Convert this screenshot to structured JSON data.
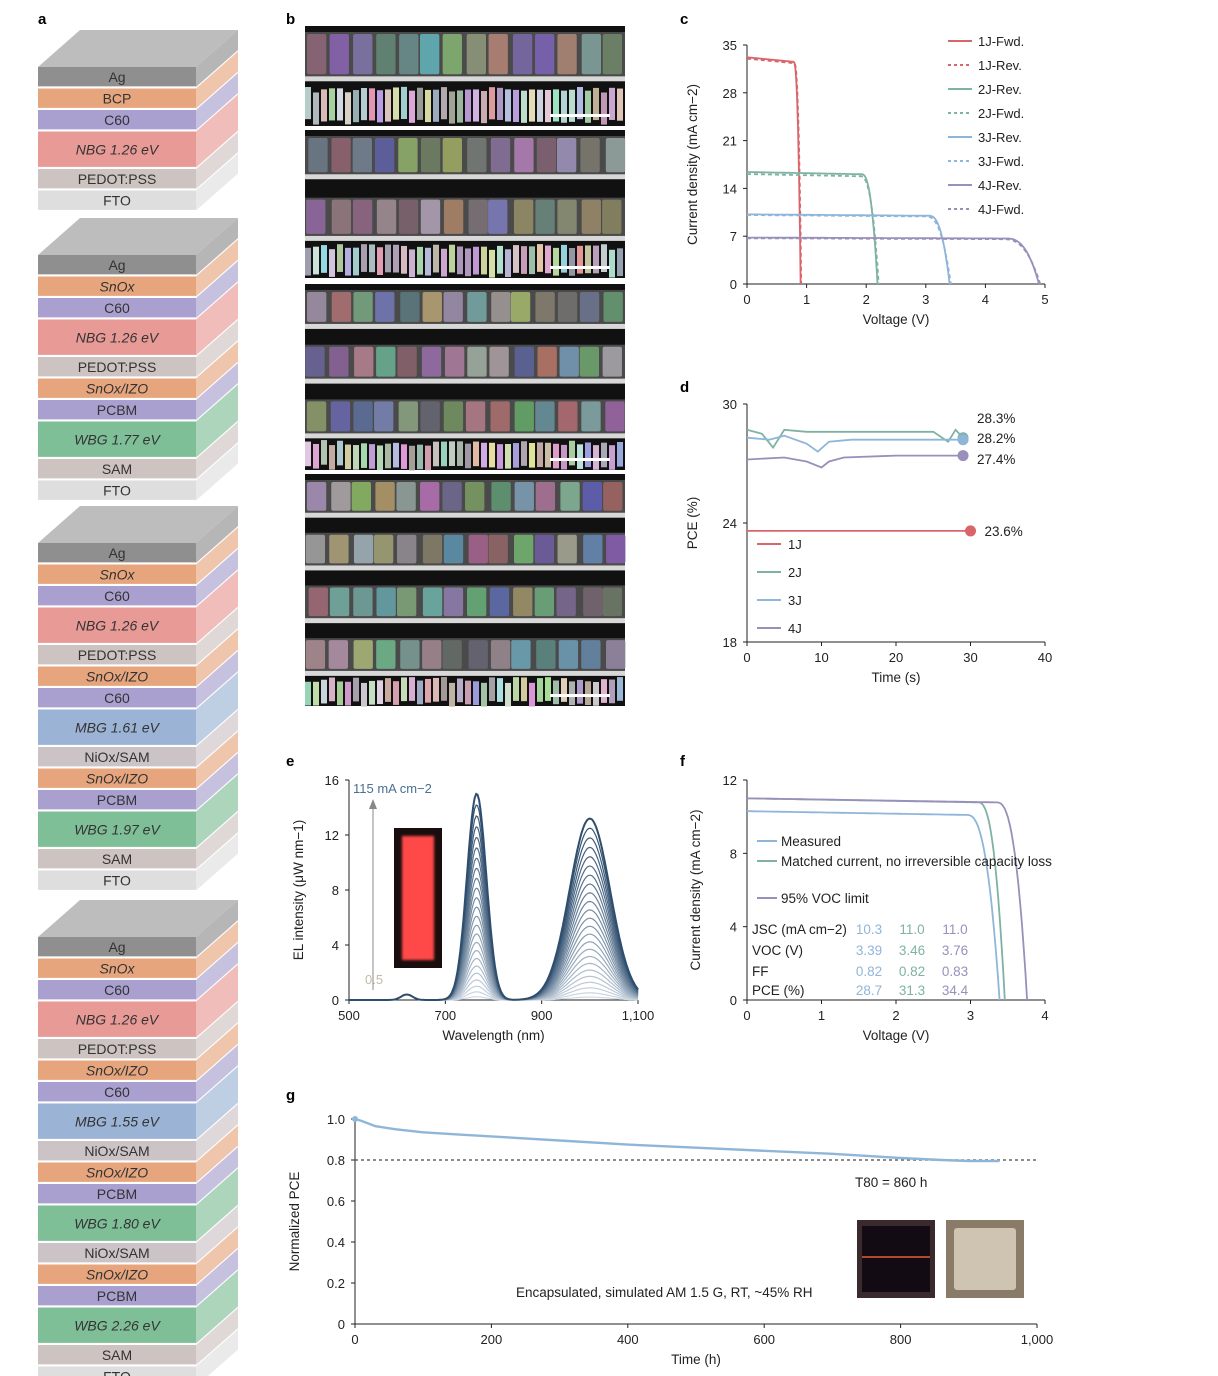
{
  "colors": {
    "j1": "#d9656b",
    "j2": "#7fb2a4",
    "j3": "#8fb6d9",
    "j4": "#9a8fbb",
    "ag": "#8f8f8f",
    "orange": "#e7a57e",
    "purple": "#a9a0cf",
    "nbg": "#e89a96",
    "pedot": "#cdc3c1",
    "fto": "#dedede",
    "green": "#7fbf98",
    "blue": "#9bb3d4",
    "nio": "#ccc3c6",
    "g_line": "#8fb6d9",
    "el_dark": "#2f4e6e",
    "el_light": "#c5d4e4"
  },
  "panels": {
    "a": "a",
    "b": "b",
    "c": "c",
    "d": "d",
    "e": "e",
    "f": "f",
    "g": "g"
  },
  "stacks": [
    {
      "layers": [
        {
          "label": "Ag",
          "color": "ag"
        },
        {
          "label": "BCP",
          "color": "orange"
        },
        {
          "label": "C60",
          "color": "purple"
        },
        {
          "label": "NBG 1.26 eV",
          "color": "nbg",
          "italic": true,
          "tall": true
        },
        {
          "label": "PEDOT:PSS",
          "color": "pedot"
        },
        {
          "label": "FTO",
          "color": "fto"
        }
      ]
    },
    {
      "layers": [
        {
          "label": "Ag",
          "color": "ag"
        },
        {
          "label": "SnOx",
          "color": "orange",
          "italic": true
        },
        {
          "label": "C60",
          "color": "purple"
        },
        {
          "label": "NBG 1.26 eV",
          "color": "nbg",
          "italic": true,
          "tall": true
        },
        {
          "label": "PEDOT:PSS",
          "color": "pedot"
        },
        {
          "label": "SnOx/IZO",
          "color": "orange",
          "italic": true
        },
        {
          "label": "PCBM",
          "color": "purple"
        },
        {
          "label": "WBG 1.77 eV",
          "color": "green",
          "italic": true,
          "tall": true
        },
        {
          "label": "SAM",
          "color": "pedot"
        },
        {
          "label": "FTO",
          "color": "fto"
        }
      ]
    },
    {
      "layers": [
        {
          "label": "Ag",
          "color": "ag"
        },
        {
          "label": "SnOx",
          "color": "orange",
          "italic": true
        },
        {
          "label": "C60",
          "color": "purple"
        },
        {
          "label": "NBG 1.26 eV",
          "color": "nbg",
          "italic": true,
          "tall": true
        },
        {
          "label": "PEDOT:PSS",
          "color": "pedot"
        },
        {
          "label": "SnOx/IZO",
          "color": "orange",
          "italic": true
        },
        {
          "label": "C60",
          "color": "purple"
        },
        {
          "label": "MBG 1.61 eV",
          "color": "blue",
          "italic": true,
          "tall": true
        },
        {
          "label": "NiOx/SAM",
          "color": "nio"
        },
        {
          "label": "SnOx/IZO",
          "color": "orange",
          "italic": true
        },
        {
          "label": "PCBM",
          "color": "purple"
        },
        {
          "label": "WBG 1.97 eV",
          "color": "green",
          "italic": true,
          "tall": true
        },
        {
          "label": "SAM",
          "color": "pedot"
        },
        {
          "label": "FTO",
          "color": "fto"
        }
      ]
    },
    {
      "layers": [
        {
          "label": "Ag",
          "color": "ag"
        },
        {
          "label": "SnOx",
          "color": "orange",
          "italic": true
        },
        {
          "label": "C60",
          "color": "purple"
        },
        {
          "label": "NBG 1.26 eV",
          "color": "nbg",
          "italic": true,
          "tall": true
        },
        {
          "label": "PEDOT:PSS",
          "color": "pedot"
        },
        {
          "label": "SnOx/IZO",
          "color": "orange",
          "italic": true
        },
        {
          "label": "C60",
          "color": "purple"
        },
        {
          "label": "MBG 1.55 eV",
          "color": "blue",
          "italic": true,
          "tall": true
        },
        {
          "label": "NiOx/SAM",
          "color": "nio"
        },
        {
          "label": "SnOx/IZO",
          "color": "orange",
          "italic": true
        },
        {
          "label": "PCBM",
          "color": "purple"
        },
        {
          "label": "WBG 1.80 eV",
          "color": "green",
          "italic": true,
          "tall": true
        },
        {
          "label": "NiOx/SAM",
          "color": "nio"
        },
        {
          "label": "SnOx/IZO",
          "color": "orange",
          "italic": true
        },
        {
          "label": "PCBM",
          "color": "purple"
        },
        {
          "label": "WBG 2.26 eV",
          "color": "green",
          "italic": true,
          "tall": true
        },
        {
          "label": "SAM",
          "color": "pedot"
        },
        {
          "label": "FTO",
          "color": "fto"
        }
      ]
    }
  ],
  "chart_data": [
    {
      "id": "c",
      "type": "line",
      "xlabel": "Voltage (V)",
      "ylabel": "Current density (mA cm−2)",
      "xlim": [
        0,
        5
      ],
      "ylim": [
        0,
        35
      ],
      "xticks": [
        0,
        1,
        2,
        3,
        4,
        5
      ],
      "yticks": [
        0,
        7,
        14,
        21,
        28,
        35
      ],
      "legend_position": "top-right",
      "series": [
        {
          "name": "1J-Fwd.",
          "color": "j1",
          "dashed": false,
          "jsc": 33.2,
          "voc": 0.9,
          "vknee": 0.78
        },
        {
          "name": "1J-Rev.",
          "color": "j1",
          "dashed": true,
          "jsc": 33.0,
          "voc": 0.91,
          "vknee": 0.79
        },
        {
          "name": "2J-Rev.",
          "color": "j2",
          "dashed": false,
          "jsc": 16.4,
          "voc": 2.19,
          "vknee": 1.92
        },
        {
          "name": "2J-Fwd.",
          "color": "j2",
          "dashed": true,
          "jsc": 16.1,
          "voc": 2.21,
          "vknee": 1.9
        },
        {
          "name": "3J-Rev.",
          "color": "j3",
          "dashed": false,
          "jsc": 10.2,
          "voc": 3.4,
          "vknee": 3.05
        },
        {
          "name": "3J-Fwd.",
          "color": "j3",
          "dashed": true,
          "jsc": 10.1,
          "voc": 3.42,
          "vknee": 3.0
        },
        {
          "name": "4J-Rev.",
          "color": "j4",
          "dashed": false,
          "jsc": 6.8,
          "voc": 4.9,
          "vknee": 4.35
        },
        {
          "name": "4J-Fwd.",
          "color": "j4",
          "dashed": true,
          "jsc": 6.7,
          "voc": 4.92,
          "vknee": 4.3
        }
      ]
    },
    {
      "id": "d",
      "type": "line",
      "xlabel": "Time (s)",
      "ylabel": "PCE (%)",
      "xlim": [
        0,
        40
      ],
      "ylim": [
        18,
        30
      ],
      "xticks": [
        0,
        10,
        20,
        30,
        40
      ],
      "yticks": [
        18,
        24,
        30
      ],
      "legend_position": "bottom-left",
      "series": [
        {
          "name": "1J",
          "color": "j1",
          "end_label": "23.6%",
          "x": [
            0,
            5,
            10,
            15,
            20,
            25,
            30
          ],
          "y": [
            23.6,
            23.6,
            23.6,
            23.6,
            23.6,
            23.6,
            23.6
          ]
        },
        {
          "name": "2J",
          "color": "j2",
          "end_label": "28.3%",
          "x": [
            0,
            2,
            3.5,
            5,
            8,
            10,
            15,
            20,
            25,
            27,
            28,
            29
          ],
          "y": [
            28.7,
            28.5,
            27.8,
            28.7,
            28.6,
            28.6,
            28.6,
            28.6,
            28.6,
            28.1,
            28.7,
            28.3
          ]
        },
        {
          "name": "3J",
          "color": "j3",
          "end_label": "28.2%",
          "x": [
            0,
            3,
            5,
            8,
            9.5,
            11,
            14,
            20,
            25,
            29
          ],
          "y": [
            28.3,
            28.2,
            28.4,
            28.0,
            27.6,
            28.1,
            28.2,
            28.2,
            28.2,
            28.2
          ]
        },
        {
          "name": "4J",
          "color": "j4",
          "end_label": "27.4%",
          "x": [
            0,
            5,
            8,
            10,
            11,
            13,
            20,
            25,
            29
          ],
          "y": [
            27.2,
            27.3,
            27.1,
            26.8,
            27.1,
            27.3,
            27.4,
            27.4,
            27.4
          ]
        }
      ]
    },
    {
      "id": "e",
      "type": "line",
      "xlabel": "Wavelength (nm)",
      "ylabel": "EL intensity (μW nm−1)",
      "xlim": [
        500,
        1100
      ],
      "ylim": [
        0,
        16
      ],
      "xticks": [
        500,
        700,
        900,
        1100
      ],
      "xtick_labels": [
        "500",
        "700",
        "900",
        "1,100"
      ],
      "yticks": [
        0,
        4,
        8,
        12,
        16
      ],
      "annotation_top": "115 mA cm−2",
      "annotation_bottom": "0.5",
      "peaks": [
        {
          "center_nm": 765,
          "width_nm": 20,
          "max_height": 15.0
        },
        {
          "center_nm": 1000,
          "width_nm": 42,
          "max_height": 13.2
        },
        {
          "center_nm": 620,
          "width_nm": 12,
          "max_height": 0.4
        }
      ],
      "curve_count": 24
    },
    {
      "id": "f",
      "type": "line",
      "xlabel": "Voltage (V)",
      "ylabel": "Current density (mA cm−2)",
      "xlim": [
        0,
        4
      ],
      "ylim": [
        0,
        12
      ],
      "xticks": [
        0,
        1,
        2,
        3,
        4
      ],
      "yticks": [
        0,
        4,
        8,
        12
      ],
      "legend_position": "center-left",
      "series": [
        {
          "name": "Measured",
          "color": "j3",
          "jsc": 10.3,
          "voc": 3.39,
          "vknee": 2.95
        },
        {
          "name": "Matched current, no irreversible capacity loss",
          "color": "j2",
          "jsc": 11.0,
          "voc": 3.46,
          "vknee": 3.1
        },
        {
          "name": "95% VOC limit",
          "color": "j4",
          "jsc": 11.0,
          "voc": 3.76,
          "vknee": 3.35
        }
      ],
      "table": {
        "rows": [
          {
            "label": "JSC (mA cm−2)",
            "values": [
              "10.3",
              "11.0",
              "11.0"
            ]
          },
          {
            "label": "VOC (V)",
            "values": [
              "3.39",
              "3.46",
              "3.76"
            ]
          },
          {
            "label": "FF",
            "values": [
              "0.82",
              "0.82",
              "0.83"
            ]
          },
          {
            "label": "PCE (%)",
            "values": [
              "28.7",
              "31.3",
              "34.4"
            ]
          }
        ]
      }
    },
    {
      "id": "g",
      "type": "line",
      "xlabel": "Time (h)",
      "ylabel": "Normalized PCE",
      "xlim": [
        0,
        1000
      ],
      "ylim": [
        0,
        1.0
      ],
      "xticks": [
        0,
        200,
        400,
        600,
        800,
        1000
      ],
      "xtick_labels": [
        "0",
        "200",
        "400",
        "600",
        "800",
        "1,000"
      ],
      "yticks": [
        0,
        0.2,
        0.4,
        0.6,
        0.8,
        1.0
      ],
      "ytick_labels": [
        "0",
        "0.2",
        "0.4",
        "0.6",
        "0.8",
        "1.0"
      ],
      "reference_line": 0.8,
      "t80_label": "T80 = 860 h",
      "caption": "Encapsulated, simulated AM 1.5 G, RT, ~45% RH",
      "series": [
        {
          "name": "PCE",
          "color": "g_line",
          "x": [
            0,
            10,
            30,
            60,
            100,
            150,
            200,
            300,
            400,
            500,
            600,
            700,
            800,
            860,
            900,
            945
          ],
          "y": [
            1.0,
            0.99,
            0.965,
            0.95,
            0.935,
            0.925,
            0.915,
            0.895,
            0.875,
            0.86,
            0.845,
            0.83,
            0.81,
            0.8,
            0.795,
            0.795
          ]
        }
      ]
    }
  ]
}
